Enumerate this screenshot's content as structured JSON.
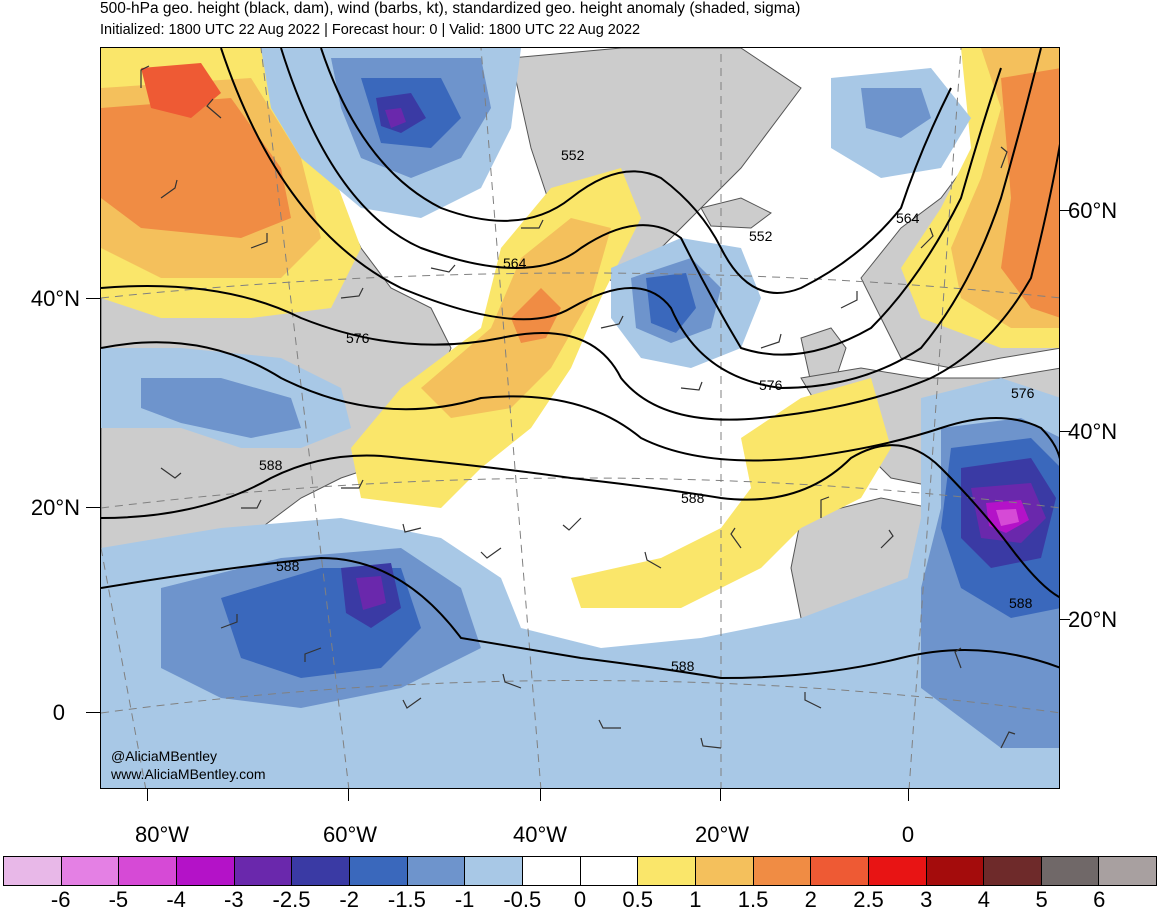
{
  "header": {
    "title": "500-hPa geo. height (black, dam), wind (barbs, kt), standardized geo. height anomaly (shaded, sigma)",
    "subtitle": "Initialized: 1800 UTC 22 Aug 2022 | Forecast hour: 0 | Valid: 1800 UTC 22 Aug 2022"
  },
  "credits": {
    "handle": "@AliciaMBentley",
    "website": "www.AliciaMBentley.com"
  },
  "map": {
    "lat_labels_left": [
      "40°N",
      "20°N",
      "0"
    ],
    "lat_labels_right": [
      "60°N",
      "40°N",
      "20°N"
    ],
    "lon_labels": [
      "80°W",
      "60°W",
      "40°W",
      "20°W",
      "0"
    ],
    "contour_labels": [
      "552",
      "552",
      "564",
      "564",
      "576",
      "576",
      "576",
      "588",
      "588",
      "588",
      "588",
      "588"
    ],
    "colors": {
      "land": "#cccccc",
      "contour": "#000000",
      "gridline": "#808080"
    }
  },
  "colorbar": {
    "labels": [
      "-6",
      "-5",
      "-4",
      "-3",
      "-2.5",
      "-2",
      "-1.5",
      "-1",
      "-0.5",
      "0",
      "0.5",
      "1",
      "1.5",
      "2",
      "2.5",
      "3",
      "4",
      "5",
      "6"
    ],
    "colors": [
      "#e8b8e8",
      "#e480e4",
      "#d64ad6",
      "#b412c8",
      "#6a28ac",
      "#3a3aa4",
      "#3a68bc",
      "#6e94cc",
      "#a8c8e6",
      "#ffffff",
      "#ffffff",
      "#fae66a",
      "#f4c05c",
      "#f08c44",
      "#ee5a34",
      "#e81414",
      "#a40c0c",
      "#6e2a2a",
      "#706868",
      "#a8a0a0"
    ]
  }
}
